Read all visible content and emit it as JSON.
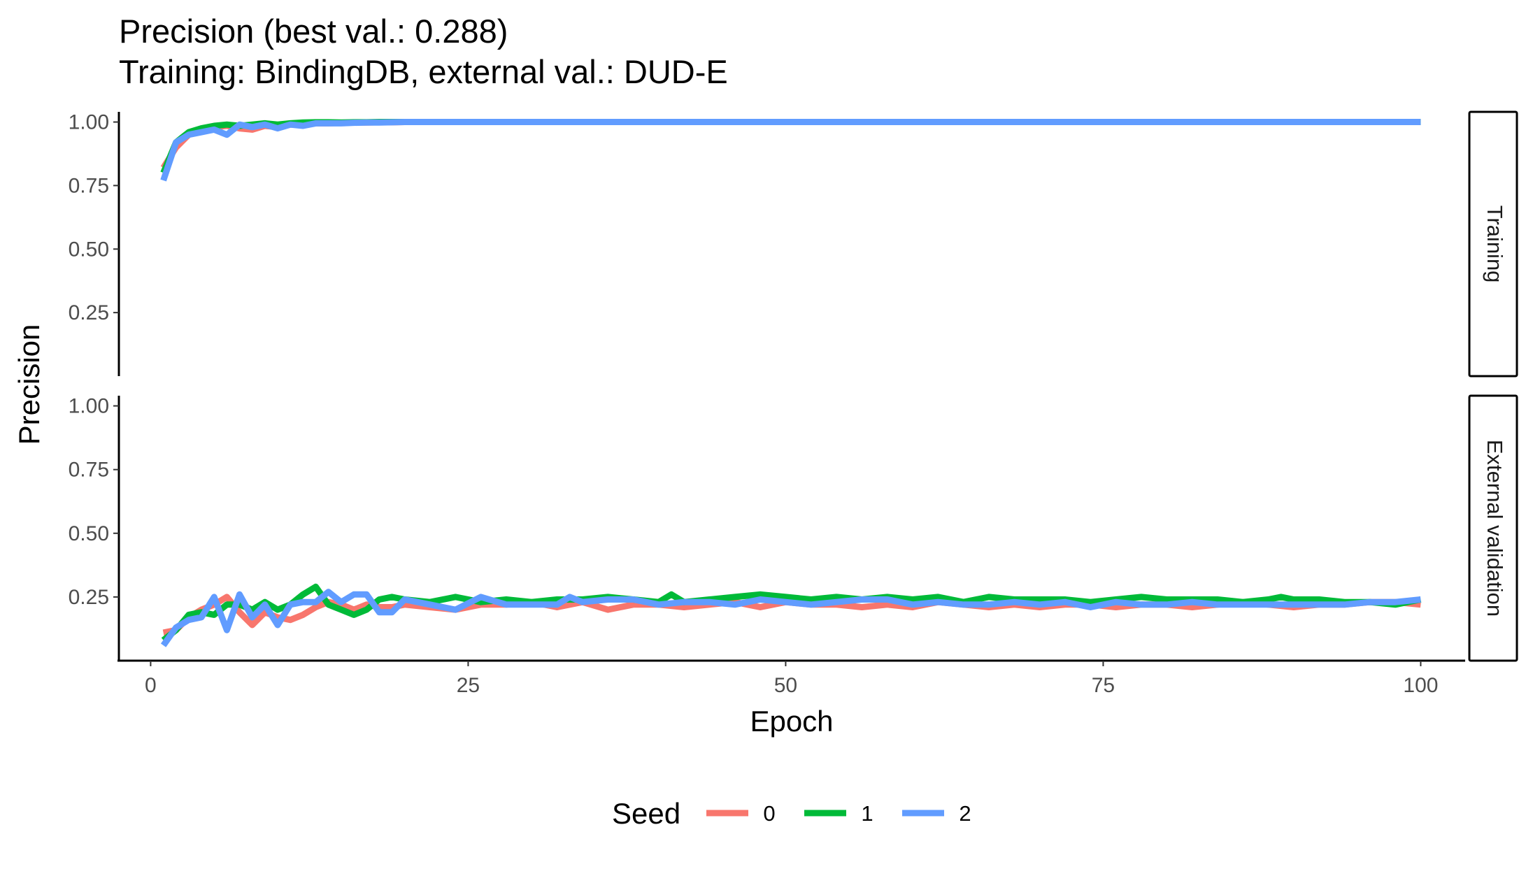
{
  "chart_data": {
    "type": "line",
    "title": "Precision (best val.: 0.288)",
    "subtitle": "Training: BindingDB, external val.: DUD-E",
    "xlabel": "Epoch",
    "ylabel": "Precision",
    "xlim": [
      -2.5,
      103.5
    ],
    "x_ticks": [
      0,
      25,
      50,
      75,
      100
    ],
    "ylim": [
      0.0,
      1.04
    ],
    "y_ticks": [
      0.25,
      0.5,
      0.75,
      1.0
    ],
    "grid": false,
    "legend": {
      "title": "Seed",
      "position": "bottom"
    },
    "colors": {
      "0": "#F8766D",
      "1": "#00BA38",
      "2": "#619CFF"
    },
    "panels": [
      {
        "label": "Training",
        "series": [
          {
            "name": "0",
            "x": [
              1,
              2,
              3,
              4,
              5,
              6,
              7,
              8,
              9,
              10,
              11,
              12,
              13,
              14,
              15,
              16,
              17,
              18,
              19,
              20,
              100
            ],
            "values": [
              0.82,
              0.9,
              0.95,
              0.97,
              0.98,
              0.985,
              0.975,
              0.97,
              0.985,
              0.98,
              0.99,
              0.99,
              0.995,
              0.995,
              0.997,
              0.998,
              0.998,
              0.999,
              0.999,
              1.0,
              1.0
            ]
          },
          {
            "name": "1",
            "x": [
              1,
              2,
              3,
              4,
              5,
              6,
              7,
              8,
              9,
              10,
              11,
              12,
              13,
              14,
              15,
              16,
              17,
              18,
              19,
              20,
              100
            ],
            "values": [
              0.8,
              0.92,
              0.96,
              0.975,
              0.985,
              0.99,
              0.985,
              0.99,
              0.995,
              0.99,
              0.995,
              0.998,
              0.999,
              0.999,
              0.998,
              0.999,
              0.999,
              1.0,
              1.0,
              1.0,
              1.0
            ]
          },
          {
            "name": "2",
            "x": [
              1,
              2,
              3,
              4,
              5,
              6,
              7,
              8,
              9,
              10,
              11,
              12,
              13,
              14,
              15,
              16,
              17,
              18,
              19,
              20,
              100
            ],
            "values": [
              0.77,
              0.92,
              0.95,
              0.96,
              0.97,
              0.95,
              0.99,
              0.98,
              0.99,
              0.975,
              0.99,
              0.985,
              0.995,
              0.995,
              0.995,
              0.997,
              0.998,
              0.998,
              0.999,
              1.0,
              1.0
            ]
          }
        ]
      },
      {
        "label": "External validation",
        "series": [
          {
            "name": "0",
            "x": [
              1,
              2,
              3,
              4,
              5,
              6,
              7,
              8,
              9,
              10,
              11,
              12,
              13,
              14,
              15,
              16,
              17,
              18,
              19,
              20,
              22,
              24,
              26,
              28,
              30,
              32,
              34,
              36,
              38,
              40,
              42,
              44,
              46,
              48,
              50,
              52,
              54,
              56,
              58,
              60,
              62,
              64,
              66,
              68,
              70,
              72,
              74,
              76,
              78,
              80,
              82,
              84,
              86,
              88,
              90,
              92,
              94,
              96,
              98,
              100
            ],
            "values": [
              0.11,
              0.12,
              0.17,
              0.2,
              0.22,
              0.25,
              0.19,
              0.14,
              0.19,
              0.17,
              0.16,
              0.18,
              0.21,
              0.23,
              0.22,
              0.2,
              0.22,
              0.21,
              0.21,
              0.22,
              0.21,
              0.2,
              0.22,
              0.22,
              0.23,
              0.21,
              0.23,
              0.2,
              0.22,
              0.22,
              0.21,
              0.22,
              0.23,
              0.21,
              0.23,
              0.22,
              0.22,
              0.21,
              0.22,
              0.21,
              0.23,
              0.22,
              0.21,
              0.22,
              0.21,
              0.22,
              0.22,
              0.21,
              0.22,
              0.22,
              0.21,
              0.22,
              0.23,
              0.22,
              0.21,
              0.22,
              0.22,
              0.23,
              0.23,
              0.22
            ]
          },
          {
            "name": "1",
            "x": [
              1,
              2,
              3,
              4,
              5,
              6,
              7,
              8,
              9,
              10,
              11,
              12,
              13,
              14,
              15,
              16,
              17,
              18,
              19,
              20,
              22,
              24,
              26,
              28,
              30,
              32,
              34,
              36,
              38,
              40,
              41,
              42,
              44,
              46,
              48,
              50,
              52,
              54,
              56,
              58,
              60,
              62,
              64,
              66,
              68,
              70,
              72,
              74,
              76,
              78,
              80,
              82,
              84,
              86,
              88,
              89,
              90,
              92,
              94,
              96,
              98,
              100
            ],
            "values": [
              0.08,
              0.12,
              0.18,
              0.19,
              0.18,
              0.22,
              0.22,
              0.2,
              0.23,
              0.2,
              0.22,
              0.26,
              0.29,
              0.22,
              0.2,
              0.18,
              0.2,
              0.24,
              0.25,
              0.24,
              0.23,
              0.25,
              0.23,
              0.24,
              0.23,
              0.24,
              0.24,
              0.25,
              0.24,
              0.23,
              0.26,
              0.23,
              0.24,
              0.25,
              0.26,
              0.25,
              0.24,
              0.25,
              0.24,
              0.25,
              0.24,
              0.25,
              0.23,
              0.25,
              0.24,
              0.24,
              0.24,
              0.23,
              0.24,
              0.25,
              0.24,
              0.24,
              0.24,
              0.23,
              0.24,
              0.25,
              0.24,
              0.24,
              0.23,
              0.23,
              0.22,
              0.24
            ]
          },
          {
            "name": "2",
            "x": [
              1,
              2,
              3,
              4,
              5,
              6,
              7,
              8,
              9,
              10,
              11,
              12,
              13,
              14,
              15,
              16,
              17,
              18,
              19,
              20,
              22,
              24,
              26,
              28,
              30,
              32,
              33,
              34,
              36,
              38,
              40,
              42,
              44,
              46,
              48,
              50,
              52,
              54,
              56,
              58,
              60,
              62,
              64,
              66,
              68,
              70,
              72,
              74,
              76,
              78,
              80,
              82,
              84,
              86,
              88,
              90,
              92,
              94,
              96,
              98,
              100
            ],
            "values": [
              0.06,
              0.13,
              0.16,
              0.17,
              0.25,
              0.12,
              0.26,
              0.17,
              0.22,
              0.14,
              0.22,
              0.23,
              0.23,
              0.27,
              0.23,
              0.26,
              0.26,
              0.19,
              0.19,
              0.24,
              0.22,
              0.2,
              0.25,
              0.22,
              0.22,
              0.22,
              0.25,
              0.23,
              0.24,
              0.24,
              0.22,
              0.23,
              0.23,
              0.22,
              0.24,
              0.23,
              0.22,
              0.23,
              0.24,
              0.24,
              0.22,
              0.23,
              0.22,
              0.22,
              0.23,
              0.22,
              0.23,
              0.21,
              0.23,
              0.22,
              0.22,
              0.23,
              0.22,
              0.22,
              0.22,
              0.22,
              0.22,
              0.22,
              0.23,
              0.23,
              0.24
            ]
          }
        ]
      }
    ]
  }
}
